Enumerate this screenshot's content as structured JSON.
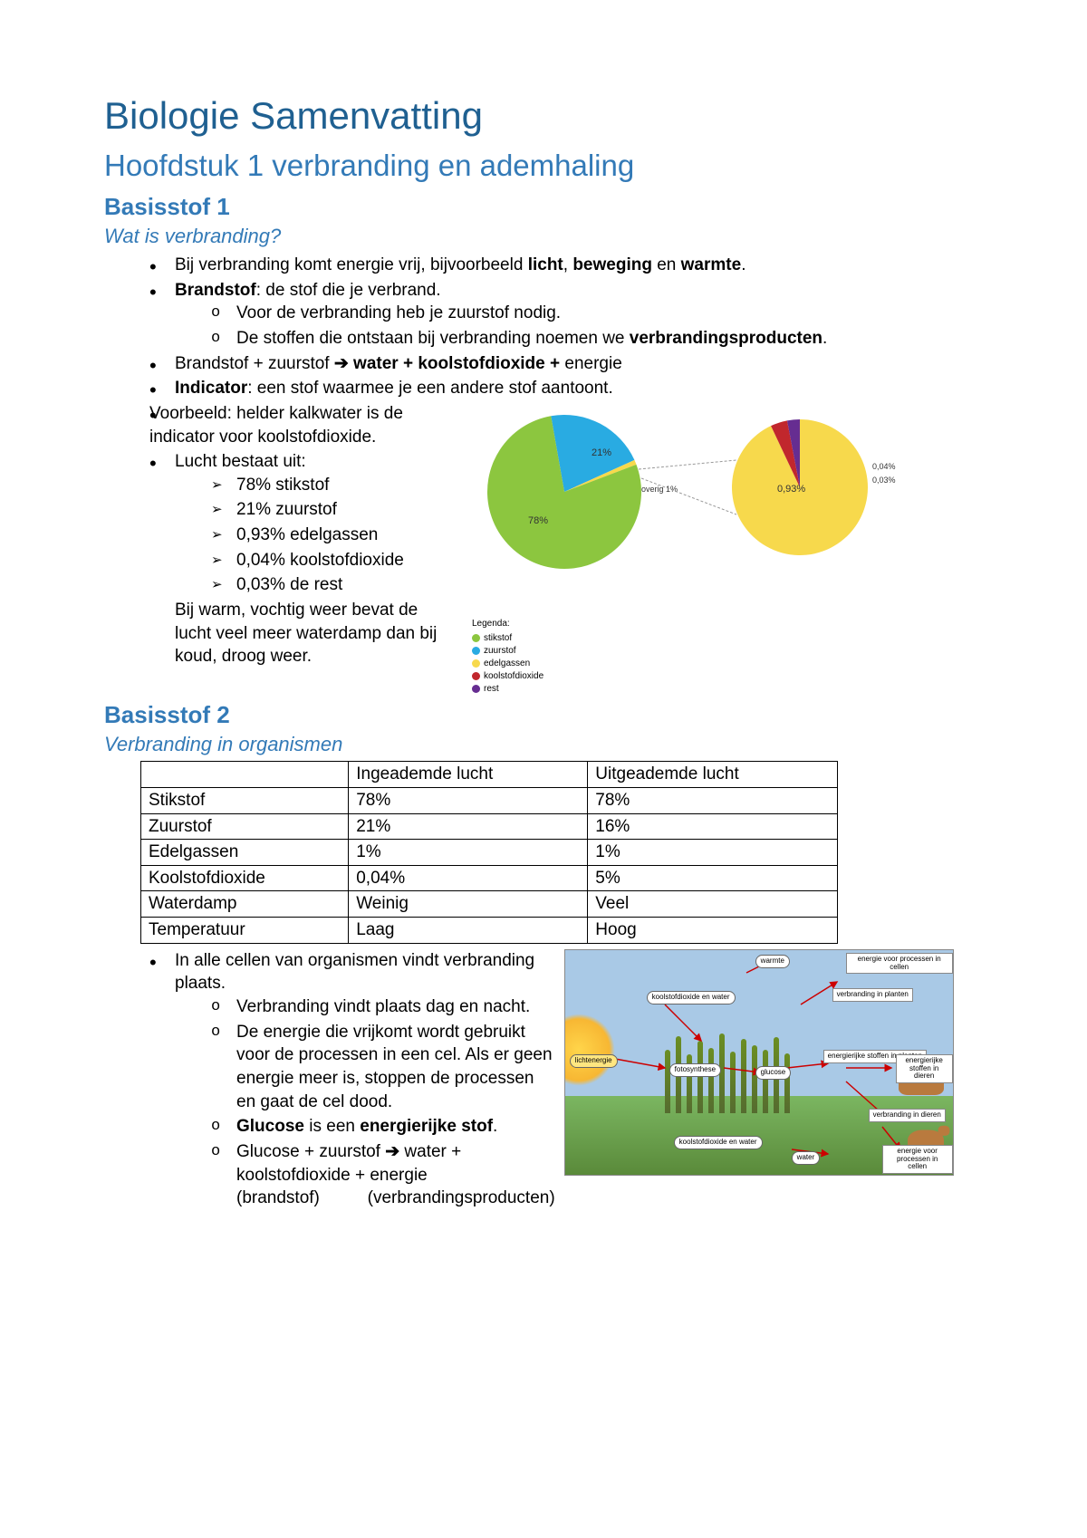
{
  "title": "Biologie Samenvatting",
  "subtitle": "Hoofdstuk 1 verbranding en ademhaling",
  "section1": "Basisstof 1",
  "sub1": "Wat is verbranding?",
  "b1_pre": "Bij verbranding komt energie vrij, bijvoorbeeld ",
  "b1_b1": "licht",
  "b1_mid1": ", ",
  "b1_b2": "beweging",
  "b1_mid2": " en ",
  "b1_b3": "warmte",
  "b1_post": ".",
  "b2_b": "Brandstof",
  "b2_post": ": de stof die je verbrand.",
  "b2_sub1": "Voor de verbranding heb je zuurstof nodig.",
  "b2_sub2_pre": "De stoffen die ontstaan bij verbranding noemen we ",
  "b2_sub2_b": "verbrandingsproducten",
  "b2_sub2_post": ".",
  "b3_pre": "Brandstof + zuurstof ",
  "b3_arrow": "➔",
  "b3_b": " water + koolstofdioxide + ",
  "b3_post": "energie",
  "b4_b": "Indicator",
  "b4_post": ": een stof waarmee je een andere stof aantoont.",
  "b4_line2": "Voorbeeld: helder kalkwater is de",
  "b4_line3": "indicator voor koolstofdioxide.",
  "b5": "Lucht bestaat uit:",
  "b5_a1": "78% stikstof",
  "b5_a2": "21% zuurstof",
  "b5_a3": "0,93% edelgassen",
  "b5_a4": "0,04% koolstofdioxide",
  "b5_a5": "0,03% de rest",
  "b5_tail": "Bij warm, vochtig weer bevat de lucht veel meer waterdamp dan bij koud, droog weer.",
  "pie": {
    "main": {
      "slices": [
        {
          "label": "stikstof",
          "value": 78,
          "color": "#8cc63f",
          "text": "78%"
        },
        {
          "label": "zuurstof",
          "value": 21,
          "color": "#29abe2",
          "text": "21%"
        },
        {
          "label": "overig",
          "value": 1,
          "color": "#f7d94c",
          "text": "overig 1%"
        }
      ]
    },
    "detail": {
      "slices": [
        {
          "label": "edelgassen",
          "value": 0.93,
          "color": "#f7d94c",
          "text": "0,93%"
        },
        {
          "label": "koolstofdioxide",
          "value": 0.04,
          "color": "#c1272d",
          "text": "0,04%"
        },
        {
          "label": "rest",
          "value": 0.03,
          "color": "#662d91",
          "text": "0,03%"
        }
      ]
    },
    "legend_title": "Legenda:",
    "legend": [
      {
        "label": "stikstof",
        "color": "#8cc63f"
      },
      {
        "label": "zuurstof",
        "color": "#29abe2"
      },
      {
        "label": "edelgassen",
        "color": "#f7d94c"
      },
      {
        "label": "koolstofdioxide",
        "color": "#c1272d"
      },
      {
        "label": "rest",
        "color": "#662d91"
      }
    ]
  },
  "section2": "Basisstof 2",
  "sub2": "Verbranding in organismen",
  "table": {
    "columns": [
      "",
      "Ingeademde lucht",
      "Uitgeademde lucht"
    ],
    "rows": [
      [
        "Stikstof",
        "78%",
        "78%"
      ],
      [
        "Zuurstof",
        "21%",
        "16%"
      ],
      [
        "Edelgassen",
        "1%",
        "1%"
      ],
      [
        "Koolstofdioxide",
        "0,04%",
        "5%"
      ],
      [
        "Waterdamp",
        "Weinig",
        "Veel"
      ],
      [
        "Temperatuur",
        "Laag",
        "Hoog"
      ]
    ]
  },
  "c1": "In alle cellen van organismen vindt verbranding plaats.",
  "c1_s1": "Verbranding vindt plaats dag en nacht.",
  "c1_s2": "De energie die vrijkomt wordt gebruikt voor de processen in een cel. Als er geen energie meer is, stoppen de processen en gaat de cel dood.",
  "c1_s3_b1": "Glucose",
  "c1_s3_mid": " is een ",
  "c1_s3_b2": "energierijke stof",
  "c1_s3_post": ".",
  "c1_s4_pre": "Glucose + zuurstof ",
  "c1_s4_arrow": "➔",
  "c1_s4_post": " water + koolstofdioxide + energie",
  "c1_s5": "(brandstof)          (verbrandingsproducten)",
  "eco": {
    "bubbles": {
      "warmte": "warmte",
      "licht": "lichtenergie",
      "koolstof": "koolstofdioxide\nen water",
      "foto": "fotosynthese",
      "glucose": "glucose",
      "water": "water",
      "erike_plant": "energierijke\nstoffen in\nplanten",
      "erike_dier": "energierijke\nstoffen in\ndieren",
      "energie_plant": "energie voor\nprocessen in\ncellen",
      "energie_dier": "energie voor\nprocessen in\ncellen",
      "verbr_plant": "verbranding\nin planten",
      "verbr_dier": "verbranding\nin dieren"
    }
  }
}
